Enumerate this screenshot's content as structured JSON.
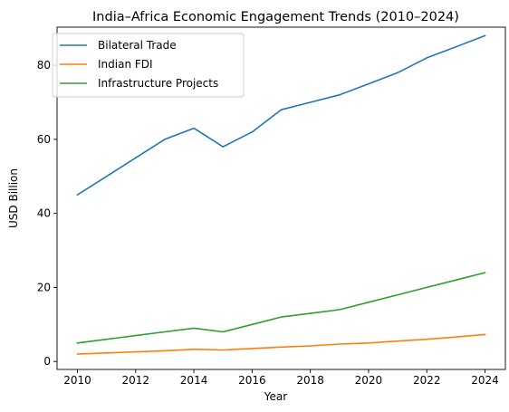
{
  "chart_data": {
    "type": "line",
    "title": "India–Africa Economic Engagement Trends (2010–2024)",
    "xlabel": "Year",
    "ylabel": "USD Billion",
    "xlim": [
      2009.3,
      2024.7
    ],
    "ylim": [
      -2.15,
      90.3
    ],
    "x_ticks": [
      2010,
      2012,
      2014,
      2016,
      2018,
      2020,
      2022,
      2024
    ],
    "y_ticks": [
      0,
      20,
      40,
      60,
      80
    ],
    "grid": false,
    "legend_position": "upper-left",
    "x": [
      2010,
      2011,
      2012,
      2013,
      2014,
      2015,
      2016,
      2017,
      2018,
      2019,
      2020,
      2021,
      2022,
      2023,
      2024
    ],
    "series": [
      {
        "name": "Bilateral Trade",
        "color": "#1f77b4",
        "values": [
          45,
          50,
          55,
          60,
          63,
          58,
          62,
          68,
          70,
          72,
          75,
          78,
          82,
          85,
          88
        ]
      },
      {
        "name": "Indian FDI",
        "color": "#ff7f0e",
        "values": [
          2.0,
          2.3,
          2.6,
          2.9,
          3.3,
          3.1,
          3.5,
          3.9,
          4.2,
          4.7,
          5.0,
          5.5,
          6.0,
          6.6,
          7.3
        ]
      },
      {
        "name": "Infrastructure Projects",
        "color": "#2ca02c",
        "values": [
          5,
          6,
          7,
          8,
          9,
          8,
          10,
          12,
          13,
          14,
          16,
          18,
          20,
          22,
          24
        ]
      }
    ]
  }
}
